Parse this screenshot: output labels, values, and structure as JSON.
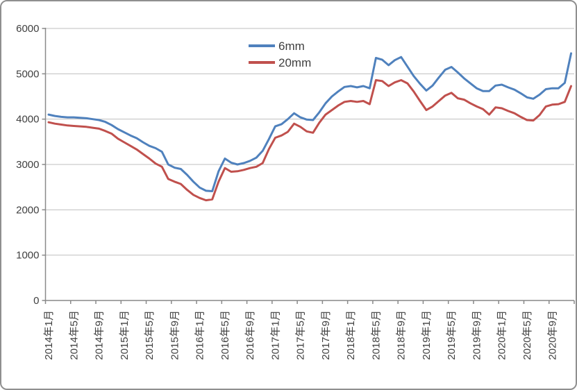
{
  "window": {
    "background": "#ffffff",
    "border_color": "#8f8f8f"
  },
  "chart_data": {
    "type": "line",
    "title": "",
    "grid": "horizontal",
    "n_points": 84,
    "points_per_label": 4,
    "legend": {
      "position": "top-center"
    },
    "y_axis": {
      "min": 0,
      "max": 6000,
      "step": 1000,
      "tick_labels": [
        "6000",
        "5000",
        "4000",
        "3000",
        "2000",
        "1000",
        "0"
      ]
    },
    "x_axis": {
      "rotation_degrees": -90,
      "tick_labels": [
        "2014年1月",
        "2014年5月",
        "2014年9月",
        "2015年1月",
        "2015年5月",
        "2015年9月",
        "2016年1月",
        "2016年5月",
        "2016年9月",
        "2017年1月",
        "2017年5月",
        "2017年9月",
        "2018年1月",
        "2018年5月",
        "2018年9月",
        "2019年1月",
        "2019年5月",
        "2019年9月",
        "2020年1月",
        "2020年5月",
        "2020年9月"
      ]
    },
    "series": [
      {
        "name": "6mm",
        "color": "#4F81BD",
        "values": [
          4100,
          4070,
          4050,
          4040,
          4040,
          4030,
          4020,
          4000,
          3980,
          3940,
          3870,
          3780,
          3710,
          3640,
          3580,
          3490,
          3410,
          3360,
          3280,
          3000,
          2930,
          2900,
          2770,
          2620,
          2490,
          2420,
          2410,
          2850,
          3130,
          3040,
          3000,
          3030,
          3080,
          3150,
          3300,
          3560,
          3840,
          3890,
          4000,
          4130,
          4040,
          3990,
          3980,
          4150,
          4350,
          4500,
          4610,
          4710,
          4730,
          4700,
          4730,
          4680,
          5350,
          5310,
          5190,
          5300,
          5370,
          5160,
          4950,
          4780,
          4630,
          4740,
          4920,
          5090,
          5150,
          5030,
          4900,
          4790,
          4680,
          4620,
          4620,
          4740,
          4760,
          4700,
          4650,
          4570,
          4480,
          4450,
          4540,
          4660,
          4680,
          4680,
          4800,
          5450
        ]
      },
      {
        "name": "20mm",
        "color": "#C0504D",
        "values": [
          3930,
          3900,
          3880,
          3860,
          3850,
          3840,
          3830,
          3810,
          3790,
          3740,
          3680,
          3570,
          3490,
          3410,
          3330,
          3230,
          3130,
          3020,
          2950,
          2680,
          2620,
          2570,
          2440,
          2330,
          2260,
          2210,
          2230,
          2620,
          2920,
          2840,
          2850,
          2880,
          2920,
          2950,
          3030,
          3340,
          3590,
          3640,
          3720,
          3900,
          3830,
          3730,
          3700,
          3920,
          4100,
          4200,
          4300,
          4380,
          4400,
          4380,
          4400,
          4330,
          4860,
          4840,
          4730,
          4810,
          4860,
          4790,
          4610,
          4400,
          4200,
          4280,
          4400,
          4520,
          4580,
          4460,
          4430,
          4350,
          4280,
          4220,
          4100,
          4260,
          4240,
          4180,
          4130,
          4050,
          3980,
          3970,
          4090,
          4280,
          4320,
          4330,
          4380,
          4730
        ]
      }
    ],
    "colors": {
      "gridline": "#bfbfbf",
      "axis": "#898989",
      "text": "#3f3f3f"
    }
  }
}
